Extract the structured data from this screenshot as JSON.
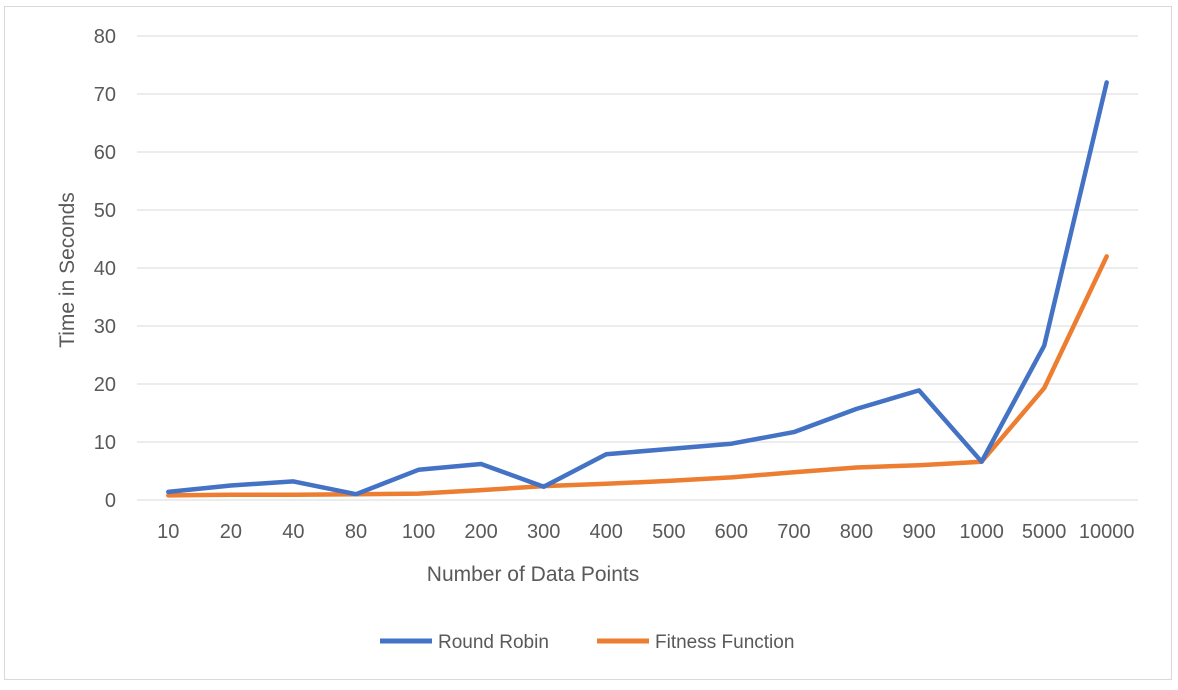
{
  "chart_data": {
    "type": "line",
    "title": "",
    "xlabel": "Number of Data Points",
    "ylabel": "Time in Seconds",
    "categories": [
      "10",
      "20",
      "40",
      "80",
      "100",
      "200",
      "300",
      "400",
      "500",
      "600",
      "700",
      "800",
      "900",
      "1000",
      "5000",
      "10000"
    ],
    "ylim": [
      0,
      80
    ],
    "yticks": [
      0,
      10,
      20,
      30,
      40,
      50,
      60,
      70,
      80
    ],
    "grid": true,
    "legend_position": "bottom",
    "series": [
      {
        "name": "Round Robin",
        "color": "#4472c4",
        "values": [
          1.4,
          2.5,
          3.2,
          1.0,
          5.2,
          6.2,
          2.3,
          7.9,
          8.8,
          9.7,
          11.7,
          15.7,
          18.9,
          6.6,
          26.6,
          72.0
        ]
      },
      {
        "name": "Fitness Function",
        "color": "#ed7d31",
        "values": [
          0.8,
          0.9,
          0.9,
          1.0,
          1.1,
          1.7,
          2.4,
          2.8,
          3.3,
          3.9,
          4.8,
          5.6,
          6.0,
          6.6,
          19.3,
          42.0
        ]
      }
    ]
  }
}
